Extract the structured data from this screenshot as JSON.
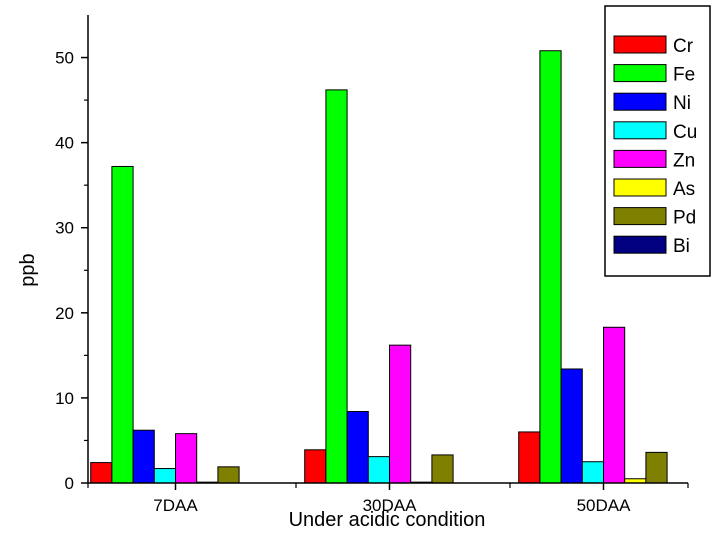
{
  "chart_data": {
    "type": "bar",
    "title": "",
    "xlabel": "Under acidic condition",
    "ylabel": "ppb",
    "ylim": [
      0,
      55
    ],
    "yticks": [
      0,
      10,
      20,
      30,
      40,
      50
    ],
    "categories": [
      "7DAA",
      "30DAA",
      "50DAA"
    ],
    "legend_position": "top-right",
    "grid": false,
    "series": [
      {
        "name": "Cr",
        "color": "#ff0000",
        "values": [
          2.4,
          3.9,
          6.0
        ]
      },
      {
        "name": "Fe",
        "color": "#00ff00",
        "values": [
          37.2,
          46.2,
          50.8
        ]
      },
      {
        "name": "Ni",
        "color": "#0000ff",
        "values": [
          6.2,
          8.4,
          13.4
        ]
      },
      {
        "name": "Cu",
        "color": "#00ffff",
        "values": [
          1.7,
          3.1,
          2.5
        ]
      },
      {
        "name": "Zn",
        "color": "#ff00ff",
        "values": [
          5.8,
          16.2,
          18.3
        ]
      },
      {
        "name": "As",
        "color": "#ffff00",
        "values": [
          0.1,
          0.1,
          0.5
        ]
      },
      {
        "name": "Pd",
        "color": "#808000",
        "values": [
          1.9,
          3.3,
          3.6
        ]
      },
      {
        "name": "Bi",
        "color": "#000080",
        "values": [
          0,
          0,
          0
        ]
      }
    ]
  }
}
